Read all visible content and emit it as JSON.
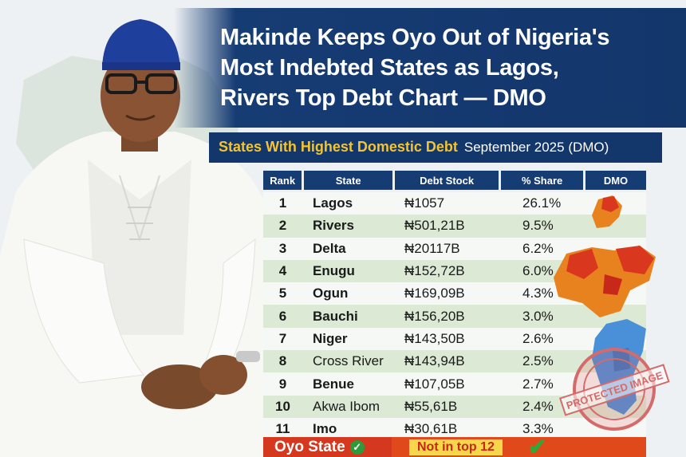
{
  "headline": {
    "line1": "Makinde Keeps Oyo Out of Nigeria's",
    "line2": "Most Indebted States as Lagos,",
    "line3": "Rivers Top Debt Chart — DMO"
  },
  "subtitle": {
    "main": "States With Highest Domestic Debt",
    "sub": "September 2025 (DMO)"
  },
  "table": {
    "headers": [
      "Rank",
      "State",
      "Debt Stock",
      "% Share",
      "DMO"
    ],
    "rows": [
      {
        "rank": "1",
        "state": "Lagos",
        "debt": "₦1057",
        "share": "26.1%"
      },
      {
        "rank": "2",
        "state": "Rivers",
        "debt": "₦501,21B",
        "share": "9.5%"
      },
      {
        "rank": "3",
        "state": "Delta",
        "debt": "₦20117B",
        "share": "6.2%"
      },
      {
        "rank": "4",
        "state": "Enugu",
        "debt": "₦152,72B",
        "share": "6.0%"
      },
      {
        "rank": "5",
        "state": "Ogun",
        "debt": "₦169,09B",
        "share": "4.3%"
      },
      {
        "rank": "6",
        "state": "Bauchi",
        "debt": "₦156,20B",
        "share": "3.0%"
      },
      {
        "rank": "7",
        "state": "Niger",
        "debt": "₦143,50B",
        "share": "2.6%"
      },
      {
        "rank": "8",
        "state": "Cross River",
        "debt": "₦143,94B",
        "share": "2.5%"
      },
      {
        "rank": "9",
        "state": "Benue",
        "debt": "₦107,05B",
        "share": "2.7%"
      },
      {
        "rank": "10",
        "state": "Akwa Ibom",
        "debt": "₦55,61B",
        "share": "2.4%"
      },
      {
        "rank": "11",
        "state": "Imo",
        "debt": "₦30,61B",
        "share": "3.3%"
      }
    ]
  },
  "oyo": {
    "label": "Oyo State",
    "note": "Not in top 12"
  },
  "stamp": {
    "text": "PROTECTED IMAGE"
  },
  "colors": {
    "navy": "#13366b",
    "gold": "#f4c430",
    "row_green": "#dbe9d5",
    "oyo_red": "#d4391f",
    "map_orange": "#e8821e",
    "map_red": "#d9381e",
    "map_blue": "#4a90d9"
  }
}
